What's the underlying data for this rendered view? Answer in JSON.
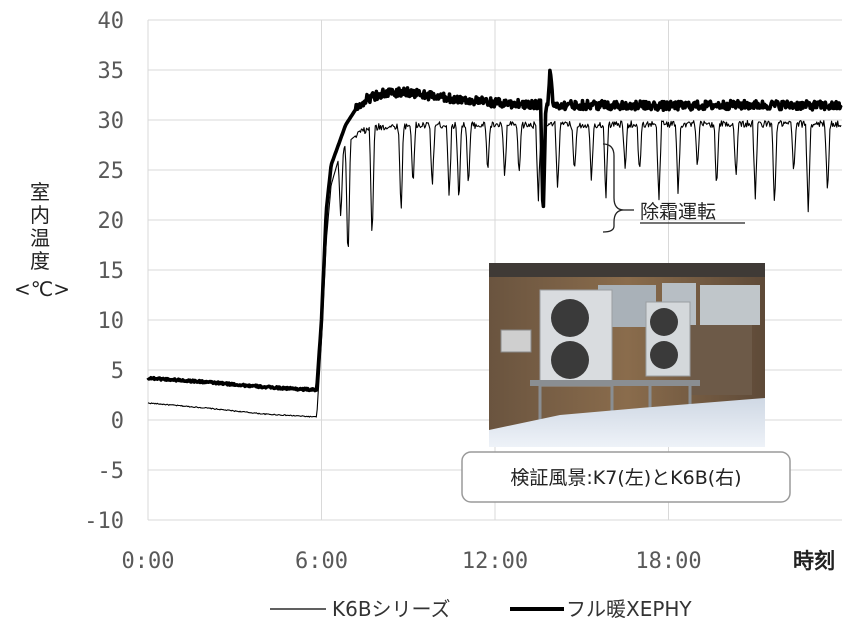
{
  "chart_data": {
    "type": "line",
    "ylabel_chars": [
      "室",
      "内",
      "温",
      "度",
      "<℃>"
    ],
    "xlabel": "時刻",
    "ylim": [
      -10,
      40
    ],
    "yticks": [
      40,
      35,
      30,
      25,
      20,
      15,
      10,
      5,
      0,
      -5,
      -10
    ],
    "xlim_hours": [
      0,
      24
    ],
    "xticks": [
      "0:00",
      "6:00",
      "12:00",
      "18:00"
    ],
    "grid": true,
    "legend_position": "bottom",
    "series": [
      {
        "name": "K6Bシリーズ",
        "style": "thin",
        "color": "#000000",
        "points": [
          [
            "0:00",
            1.7
          ],
          [
            "2:00",
            1.2
          ],
          [
            "4:00",
            0.6
          ],
          [
            "5:50",
            0.3
          ],
          [
            "6:00",
            8.0
          ],
          [
            "6:10",
            18.0
          ],
          [
            "6:20",
            23.5
          ],
          [
            "6:35",
            26.0
          ],
          [
            "6:50",
            27.5
          ],
          [
            "7:00",
            28.0
          ],
          [
            "7:20",
            28.8
          ],
          [
            "8:00",
            29.3
          ],
          [
            "10:00",
            29.5
          ],
          [
            "14:00",
            29.5
          ],
          [
            "18:00",
            29.6
          ],
          [
            "23:59",
            29.6
          ]
        ],
        "dips": [
          [
            "6:40",
            20.0
          ],
          [
            "6:55",
            15.5
          ],
          [
            "7:45",
            17.8
          ],
          [
            "8:45",
            20.5
          ],
          [
            "9:10",
            23.5
          ],
          [
            "9:50",
            23.0
          ],
          [
            "10:25",
            22.0
          ],
          [
            "10:45",
            21.5
          ],
          [
            "11:05",
            23.0
          ],
          [
            "11:45",
            24.8
          ],
          [
            "12:20",
            24.0
          ],
          [
            "12:50",
            24.5
          ],
          [
            "13:30",
            22.0
          ],
          [
            "13:40",
            20.8
          ],
          [
            "14:10",
            23.0
          ],
          [
            "14:45",
            24.5
          ],
          [
            "15:20",
            24.0
          ],
          [
            "15:50",
            22.0
          ],
          [
            "16:30",
            25.0
          ],
          [
            "17:00",
            24.5
          ],
          [
            "17:40",
            21.5
          ],
          [
            "18:20",
            22.5
          ],
          [
            "19:00",
            25.0
          ],
          [
            "19:40",
            23.0
          ],
          [
            "20:20",
            24.0
          ],
          [
            "21:00",
            22.0
          ],
          [
            "21:40",
            21.0
          ],
          [
            "22:20",
            24.5
          ],
          [
            "22:50",
            20.5
          ],
          [
            "23:30",
            22.5
          ]
        ]
      },
      {
        "name": "フル暖XEPHY",
        "style": "thick",
        "color": "#000000",
        "points": [
          [
            "0:00",
            4.2
          ],
          [
            "2:00",
            3.8
          ],
          [
            "4:00",
            3.3
          ],
          [
            "5:50",
            3.0
          ],
          [
            "6:00",
            10.0
          ],
          [
            "6:10",
            21.0
          ],
          [
            "6:20",
            25.5
          ],
          [
            "6:35",
            27.5
          ],
          [
            "6:50",
            29.5
          ],
          [
            "7:10",
            31.0
          ],
          [
            "7:30",
            32.0
          ],
          [
            "8:00",
            32.6
          ],
          [
            "9:00",
            32.8
          ],
          [
            "10:00",
            32.3
          ],
          [
            "11:00",
            32.0
          ],
          [
            "12:00",
            31.7
          ],
          [
            "13:00",
            31.6
          ],
          [
            "14:00",
            31.5
          ],
          [
            "16:00",
            31.5
          ],
          [
            "18:00",
            31.4
          ],
          [
            "20:00",
            31.5
          ],
          [
            "22:00",
            31.5
          ],
          [
            "23:59",
            31.4
          ]
        ],
        "dips": [
          [
            "13:40",
            20.3
          ],
          [
            "13:55",
            35.2
          ]
        ]
      }
    ],
    "annotations": [
      {
        "text": "除霜運転",
        "x": "16:00",
        "y": 20.5
      }
    ],
    "inset": {
      "caption": "検証風景:K7(左)とK6B(右)"
    }
  }
}
